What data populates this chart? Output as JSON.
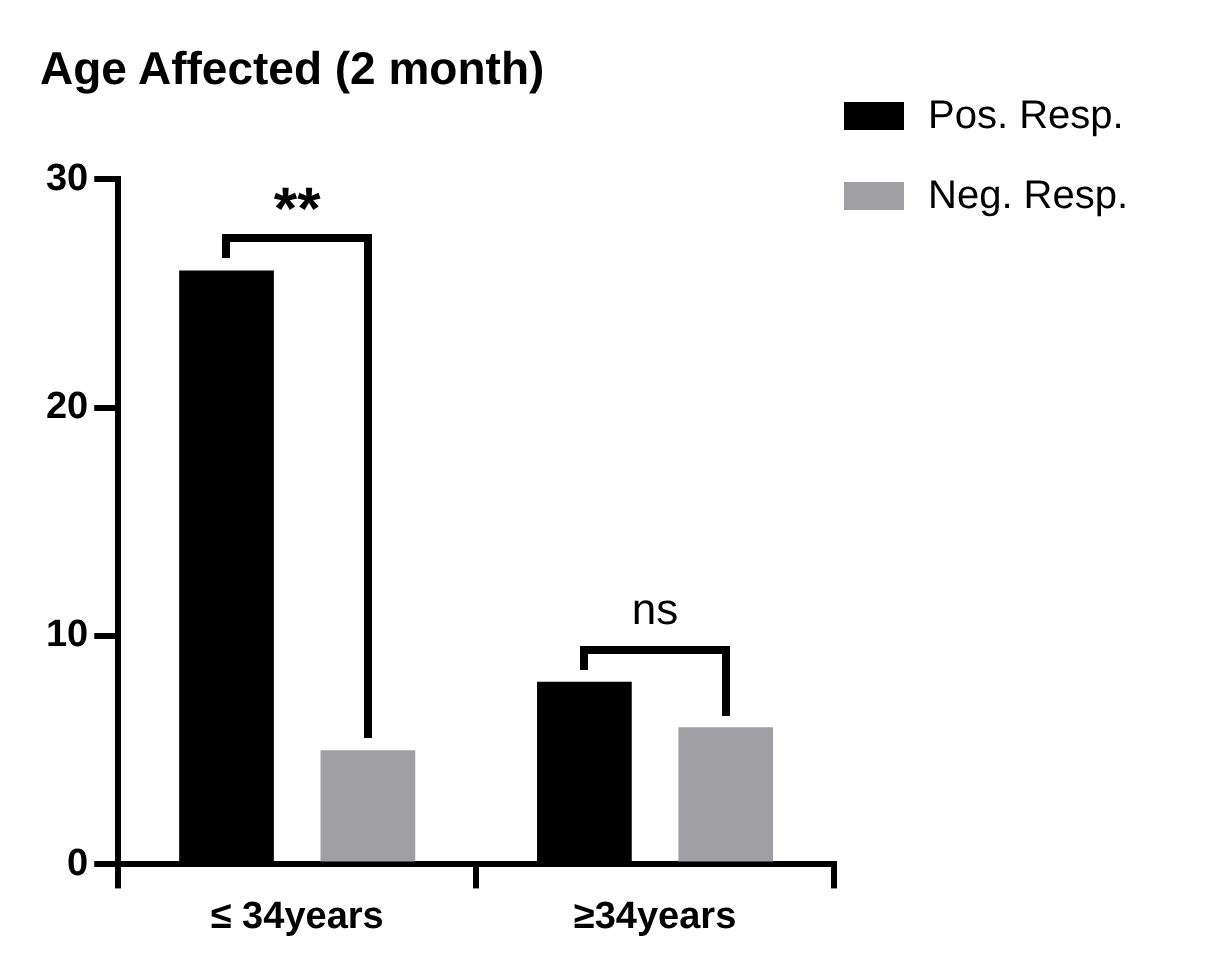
{
  "chart_data": {
    "type": "bar",
    "title": "Age Affected (2 month)",
    "categories": [
      "≤ 34years",
      "≥34years"
    ],
    "series": [
      {
        "name": "Pos. Resp.",
        "color": "#000000",
        "values": [
          26,
          8
        ]
      },
      {
        "name": "Neg. Resp.",
        "color": "#a0a0a4",
        "values": [
          5,
          6
        ]
      }
    ],
    "ylim": [
      0,
      30
    ],
    "yticks": [
      0,
      10,
      20,
      30
    ],
    "grid": false,
    "legend": "top right",
    "annotations": [
      "**",
      "ns"
    ]
  }
}
